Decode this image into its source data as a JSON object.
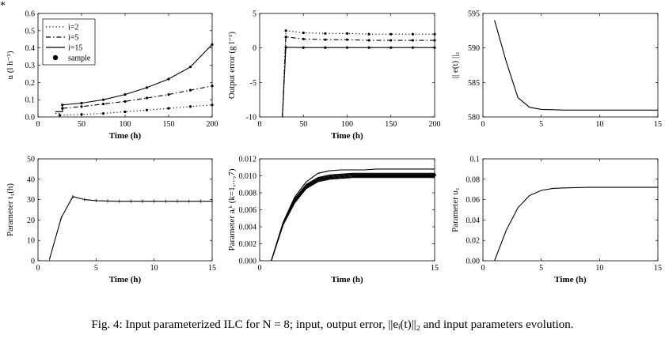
{
  "corner_mark": "*",
  "caption": {
    "prefix": "Fig. 4: ",
    "text": "Input parameterized ILC for N = 8; input, output error, ||eᵢ(t)||₂ and input parameters evolution."
  },
  "chart_data": [
    {
      "id": "p1",
      "type": "line",
      "xlabel": "Time (h)",
      "ylabel": "u (l h⁻¹)",
      "xlim": [
        0,
        200
      ],
      "ylim": [
        0,
        0.6
      ],
      "xticks": [
        "0",
        "50",
        "100",
        "150",
        "200"
      ],
      "yticks": [
        "0.0",
        "0.1",
        "0.2",
        "0.3",
        "0.4",
        "0.5",
        "0.6"
      ],
      "legend": {
        "placement": "top-left",
        "entries": [
          "i=2",
          "i=5",
          "i=15",
          "sample"
        ]
      },
      "series": [
        {
          "name": "i=2",
          "style": "dotted",
          "x": [
            20,
            25,
            25,
            50,
            75,
            100,
            125,
            150,
            175,
            200
          ],
          "y": [
            0.02,
            0.02,
            0.01,
            0.015,
            0.02,
            0.03,
            0.04,
            0.05,
            0.06,
            0.07
          ],
          "samples_x": [
            25,
            50,
            75,
            100,
            125,
            150,
            175,
            200
          ]
        },
        {
          "name": "i=5",
          "style": "dashdot",
          "x": [
            20,
            28,
            28,
            50,
            75,
            100,
            125,
            150,
            175,
            200
          ],
          "y": [
            0.03,
            0.03,
            0.05,
            0.06,
            0.075,
            0.09,
            0.11,
            0.13,
            0.155,
            0.18
          ],
          "samples_x": [
            28,
            50,
            75,
            100,
            125,
            150,
            175,
            200
          ]
        },
        {
          "name": "i=15",
          "style": "solid",
          "x": [
            20,
            28,
            28,
            50,
            75,
            100,
            125,
            150,
            175,
            200
          ],
          "y": [
            0.03,
            0.03,
            0.07,
            0.08,
            0.1,
            0.13,
            0.17,
            0.22,
            0.29,
            0.42
          ],
          "samples_x": [
            28,
            50,
            75,
            100,
            125,
            150,
            175,
            200
          ]
        }
      ]
    },
    {
      "id": "p2",
      "type": "line",
      "xlabel": "Time (h)",
      "ylabel": "Output error (g l⁻¹)",
      "xlim": [
        0,
        200
      ],
      "ylim": [
        -10,
        5
      ],
      "xticks": [
        "0",
        "50",
        "100",
        "150",
        "200"
      ],
      "yticks": [
        "-10",
        "-5",
        "0",
        "5"
      ],
      "series": [
        {
          "name": "i=2",
          "style": "dotted",
          "x": [
            26,
            30,
            50,
            75,
            100,
            125,
            150,
            175,
            200
          ],
          "y": [
            -10,
            2.5,
            2.2,
            2.1,
            2.1,
            2.0,
            2.0,
            2.0,
            2.0
          ],
          "samples_x": [
            30,
            50,
            75,
            100,
            125,
            150,
            175,
            200
          ]
        },
        {
          "name": "i=5",
          "style": "dashdot",
          "x": [
            26,
            30,
            50,
            75,
            100,
            125,
            150,
            175,
            200
          ],
          "y": [
            -10,
            1.6,
            1.3,
            1.2,
            1.2,
            1.1,
            1.1,
            1.1,
            1.1
          ],
          "samples_x": [
            30,
            50,
            75,
            100,
            125,
            150,
            175,
            200
          ]
        },
        {
          "name": "i=15",
          "style": "solid",
          "x": [
            26,
            30,
            50,
            75,
            100,
            125,
            150,
            175,
            200
          ],
          "y": [
            -10,
            0.1,
            0.05,
            0.05,
            0.05,
            0.05,
            0.05,
            0.05,
            0.05
          ],
          "samples_x": [
            30,
            50,
            75,
            100,
            125,
            150,
            175,
            200
          ]
        }
      ]
    },
    {
      "id": "p3",
      "type": "line",
      "xlabel": "",
      "ylabel": "|| e(t) ||₂",
      "xlim": [
        0,
        15
      ],
      "ylim": [
        580,
        595
      ],
      "xticks": [
        "0",
        "5",
        "10",
        "15"
      ],
      "yticks": [
        "580",
        "585",
        "590",
        "595"
      ],
      "series": [
        {
          "style": "solid",
          "x": [
            1,
            2,
            3,
            4,
            5,
            6,
            7,
            8,
            9,
            10,
            11,
            12,
            13,
            14,
            15
          ],
          "y": [
            594,
            588,
            582.8,
            581.4,
            581.1,
            581.05,
            581,
            581,
            581,
            581,
            581,
            581,
            581,
            581,
            581
          ]
        }
      ]
    },
    {
      "id": "p4",
      "type": "line",
      "xlabel": "Time (h)",
      "ylabel": "Parameter t₁(h)",
      "xlim": [
        0,
        15
      ],
      "ylim": [
        0,
        50
      ],
      "xticks": [
        "0",
        "5",
        "10",
        "15"
      ],
      "yticks": [
        "0",
        "10",
        "20",
        "30",
        "40",
        "50"
      ],
      "series": [
        {
          "style": "solid-markers",
          "x": [
            1,
            2,
            3,
            4,
            5,
            6,
            7,
            8,
            9,
            10,
            11,
            12,
            13,
            14,
            15
          ],
          "y": [
            1,
            21,
            31.5,
            30,
            29.5,
            29.3,
            29.2,
            29.2,
            29.2,
            29.2,
            29.2,
            29.2,
            29.2,
            29.2,
            29.2
          ]
        }
      ]
    },
    {
      "id": "p5",
      "type": "line",
      "xlabel": "Time (h)",
      "ylabel": "Parameter aᵢᵏ (k=1,...,7)",
      "xlim": [
        0,
        15
      ],
      "ylim": [
        0,
        0.012
      ],
      "xticks": [
        "0",
        "15"
      ],
      "yticks": [
        "0.000",
        "0.002",
        "0.004",
        "0.006",
        "0.008",
        "0.010",
        "0.012"
      ],
      "x": [
        1,
        2,
        3,
        4,
        5,
        6,
        7,
        8,
        9,
        10,
        11,
        12,
        13,
        14,
        15
      ],
      "series": [
        {
          "style": "solid",
          "y": [
            0,
            0.0045,
            0.0075,
            0.0093,
            0.0103,
            0.0106,
            0.0107,
            0.0107,
            0.0107,
            0.0108,
            0.0108,
            0.0108,
            0.0108,
            0.0108,
            0.0108
          ]
        },
        {
          "style": "solid",
          "y": [
            0,
            0.0044,
            0.0073,
            0.009,
            0.0098,
            0.0101,
            0.0102,
            0.0103,
            0.0103,
            0.0103,
            0.0103,
            0.0103,
            0.0103,
            0.0103,
            0.0103
          ]
        },
        {
          "style": "solid",
          "y": [
            0,
            0.0044,
            0.0072,
            0.0089,
            0.0097,
            0.01,
            0.0101,
            0.0102,
            0.0102,
            0.0102,
            0.0102,
            0.0102,
            0.0102,
            0.0102,
            0.0102
          ]
        },
        {
          "style": "solid",
          "y": [
            0,
            0.0043,
            0.0071,
            0.0088,
            0.0096,
            0.0099,
            0.01,
            0.0101,
            0.0101,
            0.0101,
            0.0101,
            0.0101,
            0.0101,
            0.0101,
            0.0101
          ]
        },
        {
          "style": "solid",
          "y": [
            0,
            0.0043,
            0.007,
            0.0087,
            0.0095,
            0.0098,
            0.0099,
            0.01,
            0.01,
            0.01,
            0.01,
            0.01,
            0.01,
            0.01,
            0.01
          ]
        },
        {
          "style": "solid",
          "y": [
            0,
            0.0042,
            0.0069,
            0.0086,
            0.0094,
            0.0097,
            0.0098,
            0.0099,
            0.0099,
            0.0099,
            0.0099,
            0.0099,
            0.0099,
            0.0099,
            0.0099
          ]
        },
        {
          "style": "solid",
          "y": [
            0,
            0.0042,
            0.0068,
            0.0085,
            0.0093,
            0.0096,
            0.0097,
            0.0098,
            0.0098,
            0.0098,
            0.0098,
            0.0098,
            0.0098,
            0.0098,
            0.0098
          ]
        }
      ]
    },
    {
      "id": "p6",
      "type": "line",
      "xlabel": "Time (h)",
      "ylabel": "Parameter u₁",
      "xlim": [
        0,
        15
      ],
      "ylim": [
        0,
        0.1
      ],
      "xticks": [
        "0",
        "5",
        "10",
        "15"
      ],
      "yticks": [
        "0.00",
        "0.02",
        "0.04",
        "0.06",
        "0.08",
        "0.1"
      ],
      "series": [
        {
          "style": "solid",
          "x": [
            1,
            2,
            3,
            4,
            5,
            6,
            7,
            8,
            9,
            10,
            11,
            12,
            13,
            14,
            15
          ],
          "y": [
            0,
            0.03,
            0.052,
            0.064,
            0.069,
            0.071,
            0.0715,
            0.0718,
            0.072,
            0.072,
            0.072,
            0.072,
            0.072,
            0.072,
            0.072
          ]
        }
      ]
    }
  ]
}
